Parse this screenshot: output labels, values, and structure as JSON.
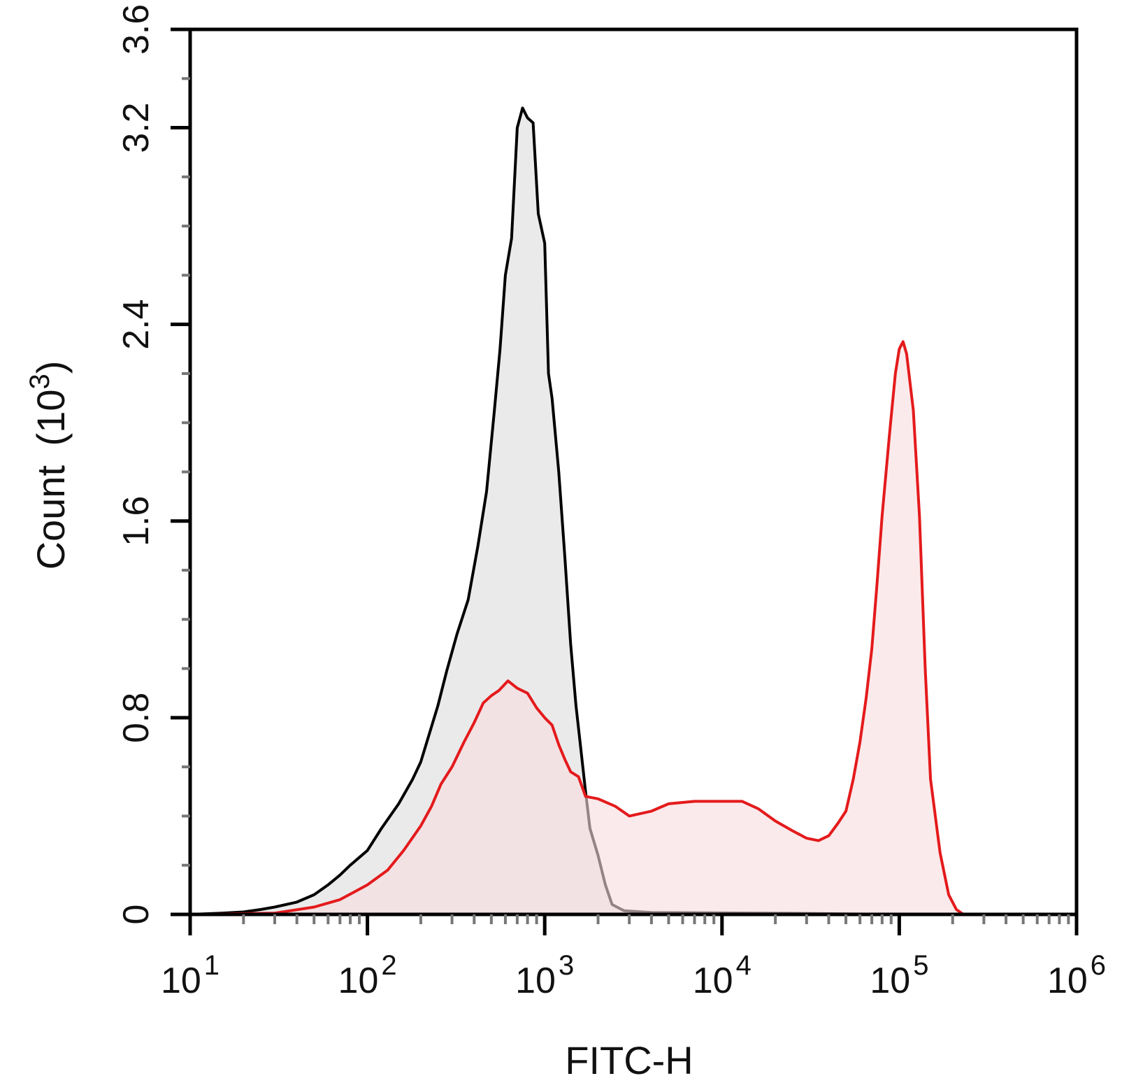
{
  "chart_data": {
    "type": "area",
    "title": "",
    "xlabel": "FITC-H",
    "ylabel": "Count",
    "ylabel_unit_base": "10",
    "ylabel_unit_exp": "3",
    "xscale": "log",
    "xlim": [
      10,
      1000000
    ],
    "ylim": [
      0,
      3.6
    ],
    "x_ticks": [
      {
        "base": "10",
        "exp": "1",
        "value": 10
      },
      {
        "base": "10",
        "exp": "2",
        "value": 100
      },
      {
        "base": "10",
        "exp": "3",
        "value": 1000
      },
      {
        "base": "10",
        "exp": "4",
        "value": 10000
      },
      {
        "base": "10",
        "exp": "5",
        "value": 100000
      },
      {
        "base": "10",
        "exp": "6",
        "value": 1000000
      }
    ],
    "y_ticks": [
      "0",
      "0.8",
      "1.6",
      "2.4",
      "3.2",
      "3.6"
    ],
    "grid": false,
    "legend": "none",
    "series": [
      {
        "color": "#000000",
        "fill": "#e8e8e8",
        "fill_opacity": 0.92,
        "points": [
          [
            10,
            0.0
          ],
          [
            15,
            0.005
          ],
          [
            20,
            0.01
          ],
          [
            25,
            0.02
          ],
          [
            30,
            0.03
          ],
          [
            40,
            0.05
          ],
          [
            50,
            0.08
          ],
          [
            60,
            0.12
          ],
          [
            70,
            0.16
          ],
          [
            80,
            0.2
          ],
          [
            100,
            0.26
          ],
          [
            120,
            0.35
          ],
          [
            150,
            0.45
          ],
          [
            180,
            0.55
          ],
          [
            200,
            0.62
          ],
          [
            250,
            0.85
          ],
          [
            280,
            0.99
          ],
          [
            320,
            1.14
          ],
          [
            370,
            1.28
          ],
          [
            420,
            1.5
          ],
          [
            470,
            1.72
          ],
          [
            520,
            2.05
          ],
          [
            560,
            2.3
          ],
          [
            600,
            2.6
          ],
          [
            650,
            2.75
          ],
          [
            700,
            3.2
          ],
          [
            750,
            3.28
          ],
          [
            800,
            3.24
          ],
          [
            860,
            3.22
          ],
          [
            920,
            2.85
          ],
          [
            1000,
            2.73
          ],
          [
            1050,
            2.2
          ],
          [
            1100,
            2.1
          ],
          [
            1200,
            1.8
          ],
          [
            1300,
            1.45
          ],
          [
            1400,
            1.1
          ],
          [
            1500,
            0.85
          ],
          [
            1600,
            0.67
          ],
          [
            1700,
            0.5
          ],
          [
            1800,
            0.35
          ],
          [
            2000,
            0.24
          ],
          [
            2200,
            0.12
          ],
          [
            2400,
            0.04
          ],
          [
            2800,
            0.015
          ],
          [
            4000,
            0.008
          ],
          [
            10000,
            0.006
          ],
          [
            30000,
            0.004
          ],
          [
            100000,
            0.0
          ]
        ]
      },
      {
        "color": "#e41a1c",
        "fill": "#f9dcdd",
        "fill_opacity": 0.6,
        "points": [
          [
            10,
            0.0
          ],
          [
            30,
            0.005
          ],
          [
            50,
            0.03
          ],
          [
            70,
            0.06
          ],
          [
            100,
            0.12
          ],
          [
            130,
            0.18
          ],
          [
            160,
            0.26
          ],
          [
            200,
            0.36
          ],
          [
            230,
            0.44
          ],
          [
            260,
            0.53
          ],
          [
            300,
            0.6
          ],
          [
            350,
            0.7
          ],
          [
            400,
            0.78
          ],
          [
            450,
            0.86
          ],
          [
            500,
            0.89
          ],
          [
            550,
            0.91
          ],
          [
            620,
            0.95
          ],
          [
            700,
            0.92
          ],
          [
            800,
            0.9
          ],
          [
            900,
            0.84
          ],
          [
            1000,
            0.8
          ],
          [
            1100,
            0.77
          ],
          [
            1200,
            0.69
          ],
          [
            1300,
            0.63
          ],
          [
            1400,
            0.58
          ],
          [
            1550,
            0.56
          ],
          [
            1700,
            0.48
          ],
          [
            2000,
            0.47
          ],
          [
            2500,
            0.44
          ],
          [
            3000,
            0.4
          ],
          [
            4000,
            0.42
          ],
          [
            5000,
            0.45
          ],
          [
            7000,
            0.46
          ],
          [
            10000,
            0.46
          ],
          [
            13000,
            0.46
          ],
          [
            16000,
            0.43
          ],
          [
            20000,
            0.38
          ],
          [
            25000,
            0.34
          ],
          [
            30000,
            0.31
          ],
          [
            35000,
            0.3
          ],
          [
            40000,
            0.32
          ],
          [
            45000,
            0.37
          ],
          [
            50000,
            0.42
          ],
          [
            55000,
            0.55
          ],
          [
            60000,
            0.7
          ],
          [
            65000,
            0.88
          ],
          [
            70000,
            1.08
          ],
          [
            75000,
            1.35
          ],
          [
            80000,
            1.62
          ],
          [
            88000,
            1.95
          ],
          [
            95000,
            2.2
          ],
          [
            100000,
            2.3
          ],
          [
            105000,
            2.33
          ],
          [
            110000,
            2.28
          ],
          [
            120000,
            2.05
          ],
          [
            130000,
            1.62
          ],
          [
            140000,
            1.0
          ],
          [
            150000,
            0.55
          ],
          [
            170000,
            0.25
          ],
          [
            190000,
            0.08
          ],
          [
            210000,
            0.02
          ],
          [
            230000,
            0.0
          ]
        ]
      }
    ]
  }
}
